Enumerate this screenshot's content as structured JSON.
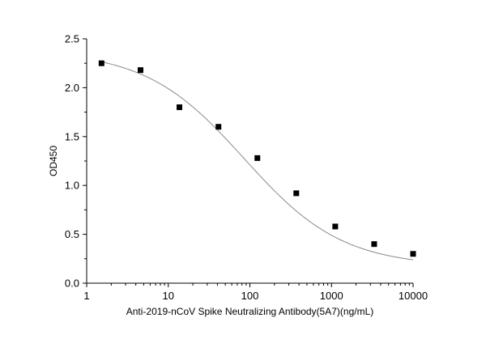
{
  "chart_data": {
    "type": "scatter",
    "title": "",
    "xlabel": "Anti-2019-nCoV Spike Neutralizing Antibody(5A7)(ng/mL)",
    "ylabel": "OD450",
    "xscale": "log",
    "xlim": [
      1,
      10000
    ],
    "ylim": [
      0.0,
      2.5
    ],
    "x_ticks": [
      1,
      10,
      100,
      1000,
      10000
    ],
    "x_tick_labels": [
      "1",
      "10",
      "100",
      "1000",
      "10000"
    ],
    "y_ticks": [
      0.0,
      0.5,
      1.0,
      1.5,
      2.0,
      2.5
    ],
    "y_tick_labels": [
      "0.0",
      "0.5",
      "1.0",
      "1.5",
      "2.0",
      "2.5"
    ],
    "grid": false,
    "legend": "none",
    "series": [
      {
        "marker": "square",
        "color": "#000000",
        "x": [
          1.52,
          4.57,
          13.7,
          41.2,
          123.5,
          370.4,
          1111,
          3333,
          10000
        ],
        "y": [
          2.25,
          2.18,
          1.8,
          1.6,
          1.28,
          0.92,
          0.58,
          0.4,
          0.3
        ]
      }
    ],
    "fit_curve": {
      "kind": "4PL",
      "color": "#8a8a8a",
      "top": 2.38,
      "bottom": 0.17,
      "ec50": 85,
      "hill": 0.72
    }
  }
}
